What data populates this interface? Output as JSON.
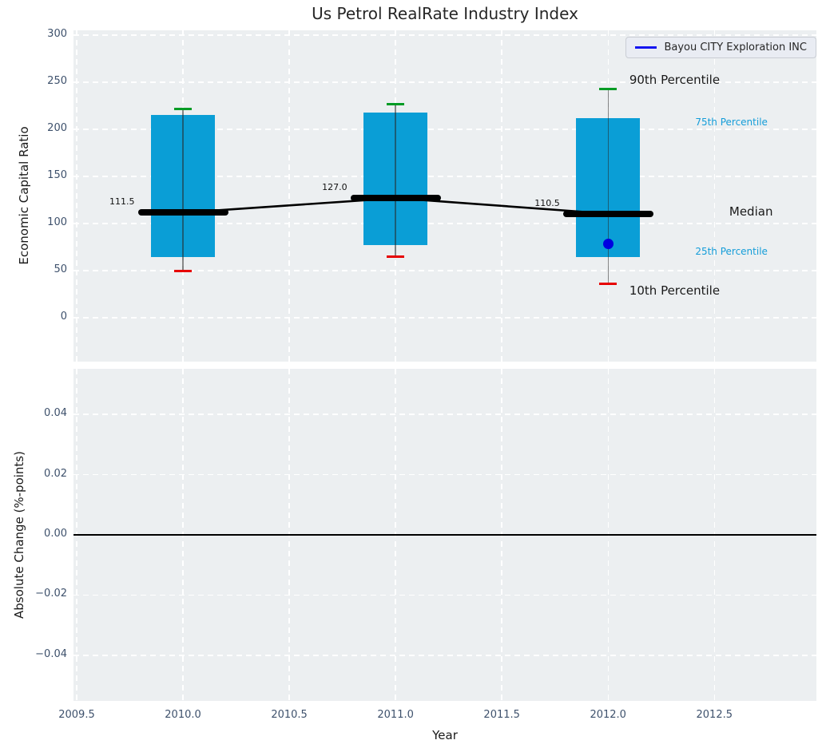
{
  "title": "Us Petrol RealRate Industry Index",
  "legend": {
    "label": "Bayou CITY Exploration INC"
  },
  "colors": {
    "axes_bg": "#eceff1",
    "grid": "#ffffff",
    "tick_label": "#3e516c",
    "text": "#262626",
    "box": "#0a9ed6",
    "p90_cap": "#009b25",
    "p10_cap": "#e60000",
    "median": "#000000",
    "company_point": "#0000e0",
    "legend_line": "#1414f0",
    "annotation_small": "#149dd9",
    "zero_line": "#000000"
  },
  "chart_data": [
    {
      "panel": "top",
      "type": "boxplot",
      "title": "Us Petrol RealRate Industry Index",
      "ylabel": "Economic Capital Ratio",
      "legend": [
        "Bayou CITY Exploration INC"
      ],
      "legend_position": "upper right",
      "grid": true,
      "xlim": [
        2009.485,
        2012.98
      ],
      "ylim": [
        -46.6,
        305.1
      ],
      "ytick_values": [
        300,
        250,
        200,
        150,
        100,
        50,
        0
      ],
      "ytick_labels": [
        "300",
        "250",
        "200",
        "150",
        "100",
        "50",
        "0"
      ],
      "xtick_values": [
        2009.5,
        2010.0,
        2010.5,
        2011.0,
        2011.5,
        2012.0,
        2012.5
      ],
      "xtick_labels": [],
      "boxes": [
        {
          "year": 2010,
          "p90": 222,
          "p75": 215,
          "median": 111.5,
          "p25": 64,
          "p10": 50,
          "median_label": "111.5"
        },
        {
          "year": 2011,
          "p90": 227,
          "p75": 218,
          "median": 127.0,
          "p25": 77,
          "p10": 65,
          "median_label": "127.0"
        },
        {
          "year": 2012,
          "p90": 243,
          "p75": 212,
          "median": 110.5,
          "p25": 64,
          "p10": 36,
          "median_label": "110.5"
        }
      ],
      "median_series": {
        "x": [
          2010,
          2011,
          2012
        ],
        "y": [
          111.5,
          127.0,
          110.5
        ]
      },
      "company_point": {
        "x": 2012,
        "y": 78,
        "label": "Bayou CITY Exploration INC"
      },
      "annotations": [
        {
          "text": "90th Percentile",
          "x": 2012.1,
          "y": 252.5,
          "style": "big"
        },
        {
          "text": "75th Percentile",
          "x": 2012.41,
          "y": 207.5,
          "style": "small"
        },
        {
          "text": "Median",
          "x": 2012.57,
          "y": 113.0,
          "style": "big"
        },
        {
          "text": "25th Percentile",
          "x": 2012.41,
          "y": 70.0,
          "style": "small"
        },
        {
          "text": "10th Percentile",
          "x": 2012.1,
          "y": 29.0,
          "style": "big"
        }
      ]
    },
    {
      "panel": "bottom",
      "type": "line",
      "ylabel": "Absolute Change (%-points)",
      "xlabel": "Year",
      "grid": true,
      "xlim": [
        2009.485,
        2012.98
      ],
      "ylim": [
        -0.0551,
        0.0551
      ],
      "ytick_values": [
        0.04,
        0.02,
        0,
        -0.02,
        -0.04
      ],
      "ytick_labels": [
        "0.04",
        "0.02",
        "0.00",
        "−0.02",
        "−0.04"
      ],
      "xtick_values": [
        2009.5,
        2010.0,
        2010.5,
        2011.0,
        2011.5,
        2012.0,
        2012.5
      ],
      "xtick_labels": [
        "2009.5",
        "2010.0",
        "2010.5",
        "2011.0",
        "2011.5",
        "2012.0",
        "2012.5"
      ],
      "zero_line": 0.0,
      "series": []
    }
  ]
}
